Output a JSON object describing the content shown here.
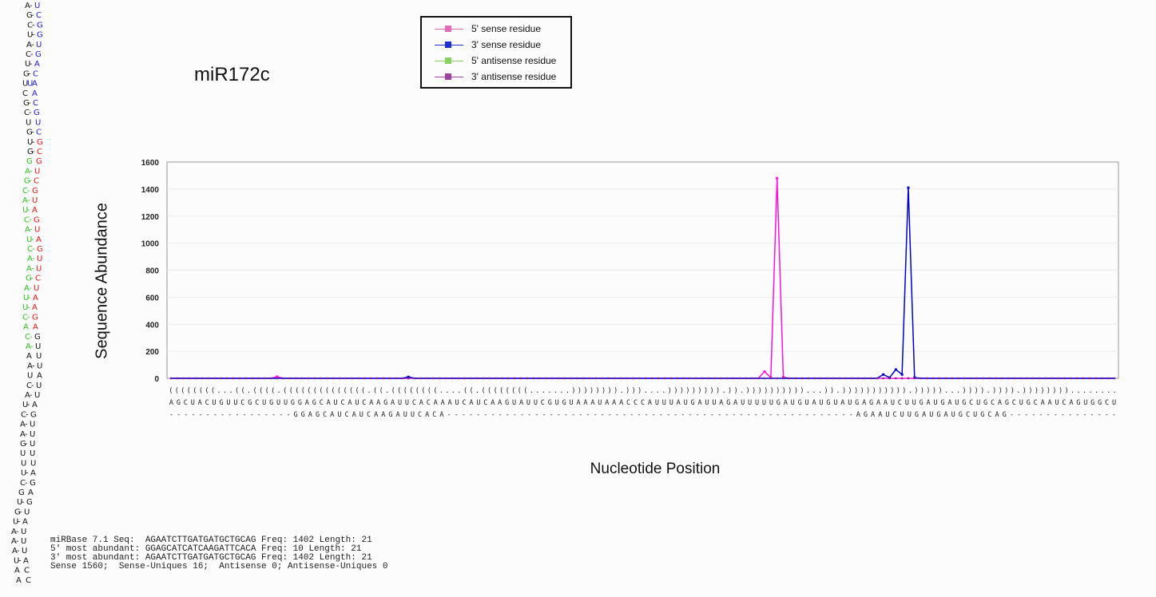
{
  "chart_data": {
    "type": "line",
    "title": "miR172c",
    "xlabel": "Nucleotide Position",
    "ylabel": "Sequence Abundance",
    "ylim": [
      0,
      1600
    ],
    "yticks": [
      "0",
      "200",
      "400",
      "600",
      "800",
      "1000",
      "1200",
      "1400",
      "1600"
    ],
    "grid": true,
    "legend_position": "top",
    "positions": 152,
    "structure": "((((((((...((.((((.((((((((((((((.((.((((((((....((.((((((((.......)))))))).)))....))))))))).)).))))))))))...)).))))))))))).)))))...)))).)))).))))))))........",
    "sequence": "AGCUACUGUUCGCUGUUGGAGCAUCAUCAAGAUUCACAAAUCAUCAAGUAUUCGUGUAAAUAAACCCAUUUAUGAUUAGAUUUUUGAUGUAUGUAUGAGAAUCUUGAUGAUGCUGCAGCUGCAAUCAGUGGCU",
    "mature_line": "-----------------GGAGCAUCAUCAAGAUUCACA--------------------------------------------------------AGAAUCUUGAUGAUGCUGCAG---------------",
    "series": [
      {
        "name": "5' sense residue",
        "color": "#ff10e0",
        "points": [
          [
            17,
            12
          ],
          [
            95,
            50
          ],
          [
            96,
            5
          ],
          [
            97,
            1480
          ],
          [
            98,
            8
          ]
        ]
      },
      {
        "name": "3' sense residue",
        "color": "#0000cc",
        "points": [
          [
            38,
            10
          ],
          [
            114,
            28
          ],
          [
            115,
            5
          ],
          [
            116,
            65
          ],
          [
            117,
            28
          ],
          [
            118,
            1410
          ],
          [
            119,
            5
          ]
        ]
      },
      {
        "name": "5' antisense residue",
        "color": "#7ccf4a",
        "points": []
      },
      {
        "name": "3' antisense residue",
        "color": "#993399",
        "points": []
      }
    ]
  },
  "legend": {
    "items": [
      {
        "label": "5' sense residue",
        "color": "#e868b8"
      },
      {
        "label": "3' sense residue",
        "color": "#2030d8"
      },
      {
        "label": "5' antisense residue",
        "color": "#88d060"
      },
      {
        "label": "3' antisense residue",
        "color": "#a040a0"
      }
    ]
  },
  "stats": {
    "line1": "miRBase 7.1 Seq:  AGAATCTTGATGATGCTGCAG Freq: 1402 Length: 21",
    "line2": "5' most abundant: GGAGCATCATCAAGATTCACA Freq: 10 Length: 21",
    "line3": "3' most abundant: AGAATCTTGATGATGCTGCAG Freq: 1402 Length: 21",
    "line4": "Sense 1560;  Sense-Uniques 16;  Antisense 0; Antisense-Uniques 0"
  },
  "hairpin": {
    "colors": {
      "default": "#111111",
      "blue": "#1a1acc",
      "green": "#30c020",
      "red": "#e01818"
    },
    "rows": [
      [
        "A",
        "-",
        "U",
        "k",
        "k",
        "b"
      ],
      [
        "G",
        "-",
        "C",
        "k",
        "k",
        "b"
      ],
      [
        "C",
        "-",
        "G",
        "k",
        "k",
        "b"
      ],
      [
        "U",
        "-",
        "G",
        "k",
        "k",
        "b"
      ],
      [
        "A",
        "-",
        "U",
        "k",
        "k",
        "b"
      ],
      [
        "C",
        "-",
        "G",
        "k",
        "k",
        "b"
      ],
      [
        "U",
        "-",
        "A",
        "k",
        "k",
        "b"
      ],
      [
        "G",
        "-",
        "C",
        "k",
        "k",
        "b"
      ],
      [
        "U",
        "U",
        "A",
        "k",
        "b",
        "b"
      ],
      [
        "C",
        "",
        "A",
        "k",
        "",
        "b"
      ],
      [
        "G",
        "-",
        "C",
        "k",
        "k",
        "b"
      ],
      [
        "C",
        "-",
        "G",
        "k",
        "k",
        "b"
      ],
      [
        "U",
        "",
        "U",
        "k",
        "",
        "b"
      ],
      [
        "G",
        "-",
        "C",
        "k",
        "k",
        "b"
      ],
      [
        "U",
        "-",
        "G",
        "k",
        "k",
        "r"
      ],
      [
        "G",
        "-",
        "C",
        "k",
        "k",
        "r"
      ],
      [
        "G",
        "",
        "G",
        "g",
        "",
        "r"
      ],
      [
        "A",
        "-",
        "U",
        "g",
        "g",
        "r"
      ],
      [
        "G",
        "-",
        "C",
        "g",
        "g",
        "r"
      ],
      [
        "C",
        "-",
        "G",
        "g",
        "g",
        "r"
      ],
      [
        "A",
        "-",
        "U",
        "g",
        "g",
        "r"
      ],
      [
        "U",
        "-",
        "A",
        "g",
        "g",
        "r"
      ],
      [
        "C",
        "-",
        "G",
        "g",
        "g",
        "r"
      ],
      [
        "A",
        "-",
        "U",
        "g",
        "g",
        "r"
      ],
      [
        "U",
        "-",
        "A",
        "g",
        "g",
        "r"
      ],
      [
        "C",
        "-",
        "G",
        "g",
        "g",
        "r"
      ],
      [
        "A",
        "-",
        "U",
        "g",
        "g",
        "r"
      ],
      [
        "A",
        "-",
        "U",
        "g",
        "g",
        "r"
      ],
      [
        "G",
        "-",
        "C",
        "g",
        "g",
        "r"
      ],
      [
        "A",
        "-",
        "U",
        "g",
        "g",
        "r"
      ],
      [
        "U",
        "-",
        "A",
        "g",
        "g",
        "r"
      ],
      [
        "U",
        "-",
        "A",
        "g",
        "g",
        "r"
      ],
      [
        "C",
        "-",
        "G",
        "g",
        "g",
        "r"
      ],
      [
        "A",
        "",
        "A",
        "g",
        "",
        "r"
      ],
      [
        "C",
        "-",
        "G",
        "g",
        "g",
        "k"
      ],
      [
        "A",
        "-",
        "U",
        "g",
        "g",
        "k"
      ],
      [
        "A",
        "",
        "U",
        "k",
        "",
        "k"
      ],
      [
        "A",
        "-",
        "U",
        "k",
        "k",
        "k"
      ],
      [
        "U",
        "",
        "A",
        "k",
        "",
        "k"
      ],
      [
        "C",
        "-",
        "U",
        "k",
        "k",
        "k"
      ],
      [
        "A",
        "-",
        "U",
        "k",
        "k",
        "k"
      ],
      [
        "U",
        "-",
        "A",
        "k",
        "k",
        "k"
      ],
      [
        "C",
        "-",
        "G",
        "k",
        "k",
        "k"
      ],
      [
        "A",
        "-",
        "U",
        "k",
        "k",
        "k"
      ],
      [
        "A",
        "-",
        "U",
        "k",
        "k",
        "k"
      ],
      [
        "G",
        "-",
        "U",
        "k",
        "k",
        "k"
      ],
      [
        "U",
        "",
        "U",
        "k",
        "",
        "k"
      ],
      [
        "U",
        "",
        "U",
        "k",
        "",
        "k"
      ],
      [
        "U",
        "-",
        "A",
        "k",
        "k",
        "k"
      ],
      [
        "C",
        "-",
        "G",
        "k",
        "k",
        "k"
      ],
      [
        "G",
        "",
        "A",
        "k",
        "",
        "k"
      ],
      [
        "U",
        "-",
        "G",
        "k",
        "k",
        "k"
      ],
      [
        "G",
        "-",
        "U",
        "k",
        "k",
        "k"
      ],
      [
        "U",
        "-",
        "A",
        "k",
        "k",
        "k"
      ],
      [
        "A",
        "-",
        "U",
        "k",
        "k",
        "k"
      ],
      [
        "A",
        "-",
        "U",
        "k",
        "k",
        "k"
      ],
      [
        "A",
        "-",
        "U",
        "k",
        "k",
        "k"
      ],
      [
        "U",
        "-",
        "A",
        "k",
        "k",
        "k"
      ],
      [
        "A",
        "",
        "C",
        "k",
        "",
        "k"
      ],
      [
        "A",
        "",
        "C",
        "k",
        "",
        "k"
      ]
    ]
  }
}
